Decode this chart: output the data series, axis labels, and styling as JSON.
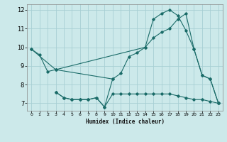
{
  "xlabel": "Humidex (Indice chaleur)",
  "bg_color": "#cce9ea",
  "grid_color": "#a8cfd4",
  "line_color": "#1a6b68",
  "xlim": [
    -0.5,
    23.5
  ],
  "ylim": [
    6.6,
    12.3
  ],
  "xticks": [
    0,
    1,
    2,
    3,
    4,
    5,
    6,
    7,
    8,
    9,
    10,
    11,
    12,
    13,
    14,
    15,
    16,
    17,
    18,
    19,
    20,
    21,
    22,
    23
  ],
  "yticks": [
    7,
    8,
    9,
    10,
    11,
    12
  ],
  "lines": [
    {
      "x": [
        0,
        1,
        2,
        3,
        10,
        11,
        12,
        13,
        14,
        15,
        16,
        17,
        18,
        19,
        20,
        21,
        22,
        23
      ],
      "y": [
        9.9,
        9.6,
        8.7,
        8.8,
        8.3,
        8.6,
        9.5,
        9.7,
        10.0,
        11.5,
        11.8,
        12.0,
        11.7,
        10.9,
        9.9,
        8.5,
        8.3,
        7.0
      ]
    },
    {
      "x": [
        0,
        3,
        14,
        15,
        16,
        17,
        18,
        19,
        20,
        21,
        22,
        23
      ],
      "y": [
        9.9,
        8.8,
        10.0,
        10.5,
        10.8,
        11.0,
        11.5,
        11.8,
        9.9,
        8.5,
        8.3,
        7.0
      ]
    },
    {
      "x": [
        3,
        4,
        5,
        6,
        7,
        8,
        9,
        10,
        11,
        12,
        13,
        14,
        15,
        16,
        17,
        18,
        19,
        20,
        21,
        22,
        23
      ],
      "y": [
        7.6,
        7.3,
        7.2,
        7.2,
        7.2,
        7.3,
        6.8,
        7.5,
        7.5,
        7.5,
        7.5,
        7.5,
        7.5,
        7.5,
        7.5,
        7.4,
        7.3,
        7.2,
        7.2,
        7.1,
        7.0
      ]
    },
    {
      "x": [
        3,
        4,
        5,
        6,
        7,
        8,
        9,
        10
      ],
      "y": [
        7.6,
        7.3,
        7.2,
        7.2,
        7.2,
        7.3,
        6.8,
        8.3
      ]
    }
  ]
}
